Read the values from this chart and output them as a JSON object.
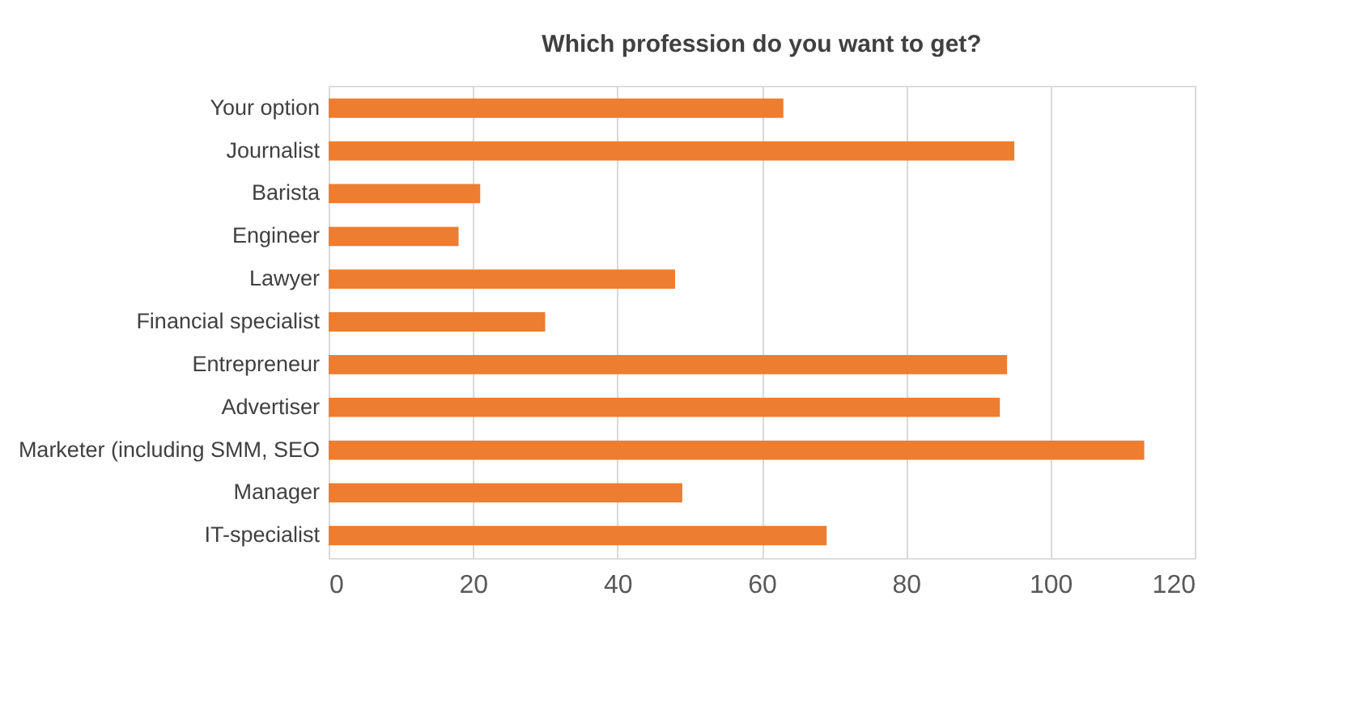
{
  "chart_data": {
    "type": "bar",
    "orientation": "horizontal",
    "title": "Which profession do you want to get?",
    "categories": [
      "Your option",
      "Journalist",
      "Barista",
      "Engineer",
      "Lawyer",
      "Financial specialist",
      "Entrepreneur",
      "Advertiser",
      "Marketer (including SMM, SEO",
      "Manager",
      "IT-specialist"
    ],
    "values": [
      63,
      95,
      21,
      18,
      48,
      30,
      94,
      93,
      113,
      49,
      69
    ],
    "color": "#ed7d31",
    "xlim": [
      0,
      120
    ],
    "xticks": [
      0,
      20,
      40,
      60,
      80,
      100,
      120
    ],
    "grid": "x"
  }
}
